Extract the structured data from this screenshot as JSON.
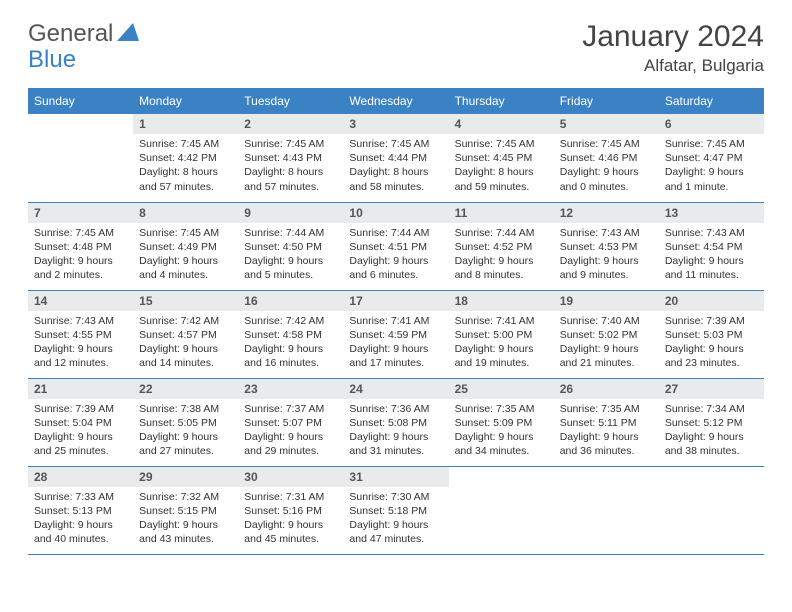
{
  "brand": {
    "general": "General",
    "blue": "Blue"
  },
  "title": "January 2024",
  "location": "Alfatar, Bulgaria",
  "colors": {
    "header_bg": "#3b82c4",
    "header_text": "#ffffff",
    "daynum_bg": "#e9eaec",
    "border": "#3b82c4",
    "logo_blue": "#3b82c4",
    "logo_gray": "#555555"
  },
  "weekdays": [
    "Sunday",
    "Monday",
    "Tuesday",
    "Wednesday",
    "Thursday",
    "Friday",
    "Saturday"
  ],
  "layout": {
    "first_weekday_index": 1,
    "days_in_month": 31
  },
  "days": {
    "1": {
      "sunrise": "7:45 AM",
      "sunset": "4:42 PM",
      "daylight": "8 hours and 57 minutes."
    },
    "2": {
      "sunrise": "7:45 AM",
      "sunset": "4:43 PM",
      "daylight": "8 hours and 57 minutes."
    },
    "3": {
      "sunrise": "7:45 AM",
      "sunset": "4:44 PM",
      "daylight": "8 hours and 58 minutes."
    },
    "4": {
      "sunrise": "7:45 AM",
      "sunset": "4:45 PM",
      "daylight": "8 hours and 59 minutes."
    },
    "5": {
      "sunrise": "7:45 AM",
      "sunset": "4:46 PM",
      "daylight": "9 hours and 0 minutes."
    },
    "6": {
      "sunrise": "7:45 AM",
      "sunset": "4:47 PM",
      "daylight": "9 hours and 1 minute."
    },
    "7": {
      "sunrise": "7:45 AM",
      "sunset": "4:48 PM",
      "daylight": "9 hours and 2 minutes."
    },
    "8": {
      "sunrise": "7:45 AM",
      "sunset": "4:49 PM",
      "daylight": "9 hours and 4 minutes."
    },
    "9": {
      "sunrise": "7:44 AM",
      "sunset": "4:50 PM",
      "daylight": "9 hours and 5 minutes."
    },
    "10": {
      "sunrise": "7:44 AM",
      "sunset": "4:51 PM",
      "daylight": "9 hours and 6 minutes."
    },
    "11": {
      "sunrise": "7:44 AM",
      "sunset": "4:52 PM",
      "daylight": "9 hours and 8 minutes."
    },
    "12": {
      "sunrise": "7:43 AM",
      "sunset": "4:53 PM",
      "daylight": "9 hours and 9 minutes."
    },
    "13": {
      "sunrise": "7:43 AM",
      "sunset": "4:54 PM",
      "daylight": "9 hours and 11 minutes."
    },
    "14": {
      "sunrise": "7:43 AM",
      "sunset": "4:55 PM",
      "daylight": "9 hours and 12 minutes."
    },
    "15": {
      "sunrise": "7:42 AM",
      "sunset": "4:57 PM",
      "daylight": "9 hours and 14 minutes."
    },
    "16": {
      "sunrise": "7:42 AM",
      "sunset": "4:58 PM",
      "daylight": "9 hours and 16 minutes."
    },
    "17": {
      "sunrise": "7:41 AM",
      "sunset": "4:59 PM",
      "daylight": "9 hours and 17 minutes."
    },
    "18": {
      "sunrise": "7:41 AM",
      "sunset": "5:00 PM",
      "daylight": "9 hours and 19 minutes."
    },
    "19": {
      "sunrise": "7:40 AM",
      "sunset": "5:02 PM",
      "daylight": "9 hours and 21 minutes."
    },
    "20": {
      "sunrise": "7:39 AM",
      "sunset": "5:03 PM",
      "daylight": "9 hours and 23 minutes."
    },
    "21": {
      "sunrise": "7:39 AM",
      "sunset": "5:04 PM",
      "daylight": "9 hours and 25 minutes."
    },
    "22": {
      "sunrise": "7:38 AM",
      "sunset": "5:05 PM",
      "daylight": "9 hours and 27 minutes."
    },
    "23": {
      "sunrise": "7:37 AM",
      "sunset": "5:07 PM",
      "daylight": "9 hours and 29 minutes."
    },
    "24": {
      "sunrise": "7:36 AM",
      "sunset": "5:08 PM",
      "daylight": "9 hours and 31 minutes."
    },
    "25": {
      "sunrise": "7:35 AM",
      "sunset": "5:09 PM",
      "daylight": "9 hours and 34 minutes."
    },
    "26": {
      "sunrise": "7:35 AM",
      "sunset": "5:11 PM",
      "daylight": "9 hours and 36 minutes."
    },
    "27": {
      "sunrise": "7:34 AM",
      "sunset": "5:12 PM",
      "daylight": "9 hours and 38 minutes."
    },
    "28": {
      "sunrise": "7:33 AM",
      "sunset": "5:13 PM",
      "daylight": "9 hours and 40 minutes."
    },
    "29": {
      "sunrise": "7:32 AM",
      "sunset": "5:15 PM",
      "daylight": "9 hours and 43 minutes."
    },
    "30": {
      "sunrise": "7:31 AM",
      "sunset": "5:16 PM",
      "daylight": "9 hours and 45 minutes."
    },
    "31": {
      "sunrise": "7:30 AM",
      "sunset": "5:18 PM",
      "daylight": "9 hours and 47 minutes."
    }
  },
  "labels": {
    "sunrise": "Sunrise:",
    "sunset": "Sunset:",
    "daylight": "Daylight:"
  }
}
